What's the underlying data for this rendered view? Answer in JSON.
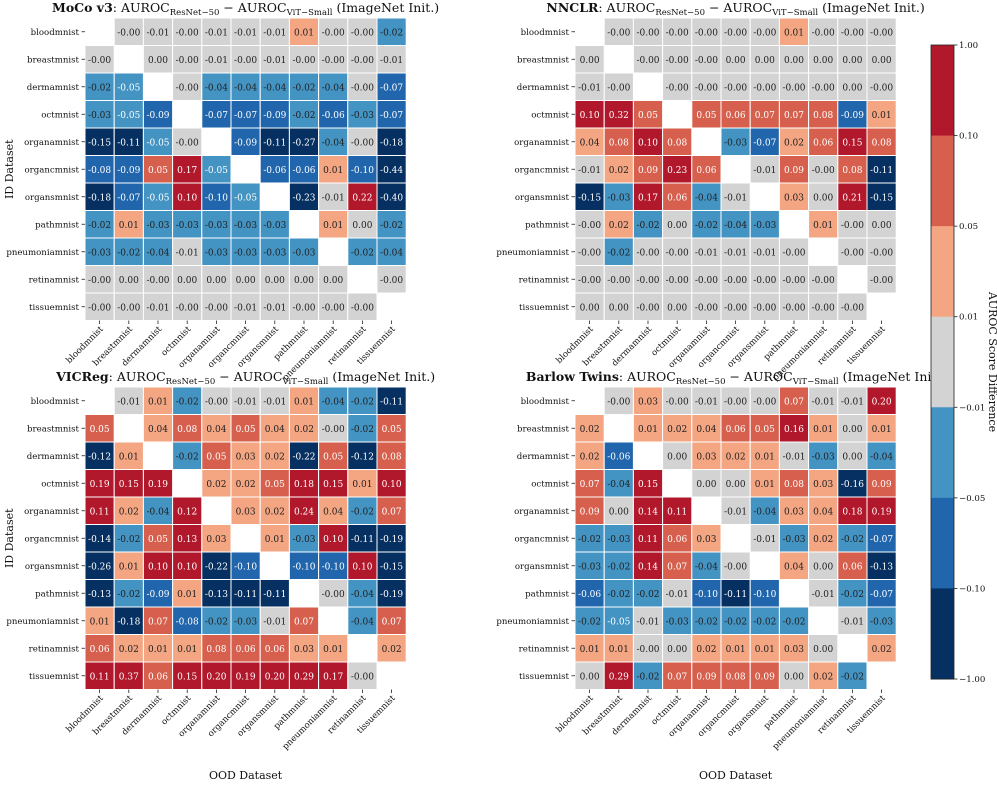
{
  "figure": {
    "row_axis_label": "ID Dataset",
    "col_axis_label": "OOD Dataset",
    "colorbar": {
      "label": "AUROC Score Difference",
      "ticks": [
        "1.00",
        "0.10",
        "0.05",
        "0.01",
        "−0.01",
        "−0.05",
        "−0.10",
        "−1.00"
      ],
      "colors": [
        "#b2182b",
        "#d6604d",
        "#f4a582",
        "#d3d3d3",
        "#4393c3",
        "#2166ac",
        "#053061"
      ],
      "bins": [
        -1.0,
        -0.1,
        -0.05,
        -0.01,
        0.01,
        0.05,
        0.1,
        1.0
      ]
    }
  },
  "chart_data": [
    {
      "type": "heatmap",
      "method": "MoCo v3",
      "title_rest": ": AUROC",
      "sub1": "ResNet−50",
      "mid": " − AUROC",
      "sub2": "ViT−Small",
      "suffix": " (ImageNet Init.)",
      "rows": [
        "bloodmnist",
        "breastmnist",
        "dermamnist",
        "octmnist",
        "organamnist",
        "organcmnist",
        "organsmnist",
        "pathmnist",
        "pneumoniamnist",
        "retinamnist",
        "tissuemnist"
      ],
      "cols": [
        "bloodmnist",
        "breastmnist",
        "dermamnist",
        "octmnist",
        "organamnist",
        "organcmnist",
        "organsmnist",
        "pathmnist",
        "pneumoniamnist",
        "retinamnist",
        "tissuemnist"
      ],
      "xlabel_visible": false,
      "ylabel_visible": true,
      "values": [
        [
          null,
          "-0.00",
          "-0.01",
          "-0.00",
          "-0.01",
          "-0.01",
          "-0.01",
          "0.01",
          "-0.00",
          "-0.00",
          "-0.02"
        ],
        [
          "-0.00",
          null,
          "0.00",
          "-0.00",
          "-0.01",
          "-0.00",
          "-0.01",
          "-0.00",
          "-0.00",
          "-0.00",
          "-0.01"
        ],
        [
          "-0.02",
          "-0.05",
          null,
          "-0.00",
          "-0.04",
          "-0.04",
          "-0.04",
          "-0.02",
          "-0.04",
          "-0.00",
          "-0.07"
        ],
        [
          "-0.03",
          "-0.05",
          "-0.09",
          null,
          "-0.07",
          "-0.07",
          "-0.09",
          "-0.02",
          "-0.06",
          "-0.03",
          "-0.07"
        ],
        [
          "-0.15",
          "-0.11",
          "-0.05",
          "-0.00",
          null,
          "-0.09",
          "-0.11",
          "-0.27",
          "-0.04",
          "-0.00",
          "-0.18"
        ],
        [
          "-0.08",
          "-0.09",
          "0.05",
          "0.17",
          "-0.05",
          null,
          "-0.06",
          "-0.06",
          "0.01",
          "-0.10",
          "-0.44"
        ],
        [
          "-0.18",
          "-0.07",
          "-0.05",
          "0.10",
          "-0.10",
          "-0.05",
          null,
          "-0.23",
          "-0.01",
          "0.22",
          "-0.40"
        ],
        [
          "-0.02",
          "0.01",
          "-0.03",
          "-0.03",
          "-0.03",
          "-0.03",
          "-0.03",
          null,
          "0.01",
          "0.00",
          "-0.02"
        ],
        [
          "-0.03",
          "-0.02",
          "-0.04",
          "-0.01",
          "-0.03",
          "-0.03",
          "-0.03",
          "-0.03",
          null,
          "-0.02",
          "-0.04"
        ],
        [
          "-0.00",
          "0.00",
          "-0.00",
          "0.00",
          "0.00",
          "0.00",
          "0.00",
          "0.00",
          "0.00",
          null,
          "-0.00"
        ],
        [
          "-0.00",
          "-0.00",
          "-0.01",
          "-0.00",
          "-0.00",
          "-0.01",
          "-0.01",
          "-0.00",
          "-0.00",
          "-0.00",
          null
        ]
      ]
    },
    {
      "type": "heatmap",
      "method": "NNCLR",
      "title_rest": ": AUROC",
      "sub1": "ResNet−50",
      "mid": " − AUROC",
      "sub2": "ViT−Small",
      "suffix": " (ImageNet Init.)",
      "rows": [
        "bloodmnist",
        "breastmnist",
        "dermamnist",
        "octmnist",
        "organamnist",
        "organcmnist",
        "organsmnist",
        "pathmnist",
        "pneumoniamnist",
        "retinamnist",
        "tissuemnist"
      ],
      "cols": [
        "bloodmnist",
        "breastmnist",
        "dermamnist",
        "octmnist",
        "organamnist",
        "organcmnist",
        "organsmnist",
        "pathmnist",
        "pneumoniamnist",
        "retinamnist",
        "tissuemnist"
      ],
      "xlabel_visible": false,
      "ylabel_visible": false,
      "values": [
        [
          null,
          "-0.00",
          "-0.00",
          "-0.00",
          "-0.00",
          "-0.00",
          "-0.00",
          "0.01",
          "-0.00",
          "-0.00",
          "-0.00"
        ],
        [
          "0.00",
          null,
          "-0.00",
          "-0.00",
          "-0.00",
          "0.00",
          "0.00",
          "0.00",
          "0.00",
          "0.00",
          "0.00"
        ],
        [
          "-0.01",
          "-0.00",
          null,
          "-0.00",
          "-0.00",
          "-0.00",
          "-0.00",
          "-0.00",
          "-0.00",
          "0.00",
          "-0.00"
        ],
        [
          "0.10",
          "0.32",
          "0.05",
          null,
          "0.05",
          "0.06",
          "0.07",
          "0.07",
          "0.08",
          "-0.09",
          "0.01"
        ],
        [
          "0.04",
          "0.08",
          "0.10",
          "0.08",
          null,
          "-0.03",
          "-0.07",
          "0.02",
          "0.06",
          "0.15",
          "0.08"
        ],
        [
          "-0.01",
          "0.02",
          "0.09",
          "0.23",
          "0.06",
          null,
          "-0.01",
          "0.09",
          "-0.00",
          "0.08",
          "-0.11"
        ],
        [
          "-0.15",
          "-0.03",
          "0.17",
          "0.06",
          "-0.04",
          "-0.01",
          null,
          "0.03",
          "0.00",
          "0.21",
          "-0.15"
        ],
        [
          "-0.00",
          "0.02",
          "-0.02",
          "0.00",
          "-0.02",
          "-0.04",
          "-0.03",
          null,
          "0.01",
          "-0.00",
          "0.00"
        ],
        [
          "-0.00",
          "-0.02",
          "-0.00",
          "-0.00",
          "-0.01",
          "-0.01",
          "-0.01",
          "-0.00",
          null,
          "-0.00",
          "-0.00"
        ],
        [
          "-0.00",
          "-0.00",
          "-0.00",
          "-0.00",
          "-0.00",
          "-0.00",
          "-0.00",
          "-0.00",
          "-0.00",
          null,
          "-0.00"
        ],
        [
          "0.00",
          "0.00",
          "-0.00",
          "0.00",
          "-0.00",
          "-0.00",
          "-0.00",
          "-0.00",
          "-0.00",
          "-0.00",
          null
        ]
      ]
    },
    {
      "type": "heatmap",
      "method": "VICReg",
      "title_rest": ": AUROC",
      "sub1": "ResNet−50",
      "mid": " − AUROC",
      "sub2": "ViT−Small",
      "suffix": " (ImageNet Init.)",
      "rows": [
        "bloodmnist",
        "breastmnist",
        "dermamnist",
        "octmnist",
        "organamnist",
        "organcmnist",
        "organsmnist",
        "pathmnist",
        "pneumoniamnist",
        "retinamnist",
        "tissuemnist"
      ],
      "cols": [
        "bloodmnist",
        "breastmnist",
        "dermamnist",
        "octmnist",
        "organamnist",
        "organcmnist",
        "organsmnist",
        "pathmnist",
        "pneumoniamnist",
        "retinamnist",
        "tissuemnist"
      ],
      "xlabel_visible": true,
      "ylabel_visible": true,
      "values": [
        [
          null,
          "-0.01",
          "0.01",
          "-0.02",
          "-0.00",
          "-0.01",
          "-0.01",
          "0.01",
          "-0.04",
          "-0.02",
          "-0.11"
        ],
        [
          "0.05",
          null,
          "0.04",
          "0.08",
          "0.04",
          "0.05",
          "0.04",
          "0.02",
          "-0.00",
          "-0.02",
          "0.05"
        ],
        [
          "-0.12",
          "0.01",
          null,
          "-0.02",
          "0.05",
          "0.03",
          "0.02",
          "-0.22",
          "0.05",
          "-0.12",
          "0.08"
        ],
        [
          "0.19",
          "0.15",
          "0.19",
          null,
          "0.02",
          "0.02",
          "0.05",
          "0.18",
          "0.15",
          "0.01",
          "0.10"
        ],
        [
          "0.11",
          "0.02",
          "-0.04",
          "0.12",
          null,
          "0.03",
          "0.02",
          "0.24",
          "0.04",
          "-0.02",
          "0.07"
        ],
        [
          "-0.14",
          "-0.02",
          "0.05",
          "0.13",
          "0.03",
          null,
          "0.01",
          "-0.03",
          "0.10",
          "-0.11",
          "-0.19"
        ],
        [
          "-0.26",
          "0.01",
          "0.10",
          "0.10",
          "-0.22",
          "-0.10",
          null,
          "-0.10",
          "-0.10",
          "0.10",
          "-0.15"
        ],
        [
          "-0.13",
          "-0.02",
          "-0.09",
          "0.01",
          "-0.13",
          "-0.11",
          "-0.11",
          null,
          "-0.00",
          "-0.04",
          "-0.19"
        ],
        [
          "0.01",
          "-0.18",
          "0.07",
          "-0.08",
          "-0.02",
          "-0.03",
          "-0.01",
          "0.07",
          null,
          "-0.04",
          "0.07"
        ],
        [
          "0.06",
          "0.02",
          "0.01",
          "0.01",
          "0.08",
          "0.06",
          "0.06",
          "0.03",
          "0.01",
          null,
          "0.02"
        ],
        [
          "0.11",
          "0.37",
          "0.06",
          "0.15",
          "0.20",
          "0.19",
          "0.20",
          "0.29",
          "0.17",
          "-0.00",
          null
        ]
      ]
    },
    {
      "type": "heatmap",
      "method": "Barlow Twins",
      "title_rest": ": AUROC",
      "sub1": "ResNet−50",
      "mid": " − AUROC",
      "sub2": "ViT−Small",
      "suffix": " (ImageNet Init.)",
      "rows": [
        "bloodmnist",
        "breastmnist",
        "dermamnist",
        "octmnist",
        "organamnist",
        "organcmnist",
        "organsmnist",
        "pathmnist",
        "pneumoniamnist",
        "retinamnist",
        "tissuemnist"
      ],
      "cols": [
        "bloodmnist",
        "breastmnist",
        "dermamnist",
        "octmnist",
        "organamnist",
        "organcmnist",
        "organsmnist",
        "pathmnist",
        "pneumoniamnist",
        "retinamnist",
        "tissuemnist"
      ],
      "xlabel_visible": true,
      "ylabel_visible": false,
      "values": [
        [
          null,
          "-0.00",
          "0.03",
          "-0.00",
          "-0.01",
          "-0.00",
          "-0.00",
          "0.07",
          "-0.01",
          "-0.01",
          "0.20"
        ],
        [
          "0.02",
          null,
          "0.01",
          "0.02",
          "0.04",
          "0.06",
          "0.05",
          "0.16",
          "0.01",
          "0.00",
          "0.01"
        ],
        [
          "0.02",
          "-0.06",
          null,
          "0.00",
          "0.03",
          "0.02",
          "0.01",
          "-0.01",
          "-0.03",
          "0.00",
          "-0.04"
        ],
        [
          "0.07",
          "-0.04",
          "0.15",
          null,
          "0.00",
          "0.00",
          "0.01",
          "0.08",
          "0.03",
          "-0.16",
          "0.09"
        ],
        [
          "0.09",
          "0.00",
          "0.14",
          "0.11",
          null,
          "-0.01",
          "-0.04",
          "0.03",
          "0.04",
          "0.18",
          "0.19"
        ],
        [
          "-0.02",
          "-0.03",
          "0.11",
          "0.06",
          "0.03",
          null,
          "-0.01",
          "-0.03",
          "0.02",
          "-0.02",
          "-0.07"
        ],
        [
          "-0.03",
          "-0.02",
          "0.14",
          "0.07",
          "-0.04",
          "-0.00",
          null,
          "0.04",
          "0.00",
          "0.06",
          "-0.13"
        ],
        [
          "-0.06",
          "-0.02",
          "-0.02",
          "-0.01",
          "-0.10",
          "-0.11",
          "-0.10",
          null,
          "-0.01",
          "-0.02",
          "-0.07"
        ],
        [
          "-0.02",
          "-0.05",
          "-0.01",
          "-0.03",
          "-0.02",
          "-0.02",
          "-0.02",
          "-0.02",
          null,
          "-0.01",
          "-0.03"
        ],
        [
          "0.01",
          "0.01",
          "-0.00",
          "0.00",
          "0.02",
          "0.01",
          "0.01",
          "0.03",
          "0.00",
          null,
          "0.02"
        ],
        [
          "0.00",
          "0.29",
          "-0.02",
          "0.07",
          "0.09",
          "0.08",
          "0.09",
          "0.00",
          "0.02",
          "-0.02",
          null
        ]
      ]
    }
  ]
}
